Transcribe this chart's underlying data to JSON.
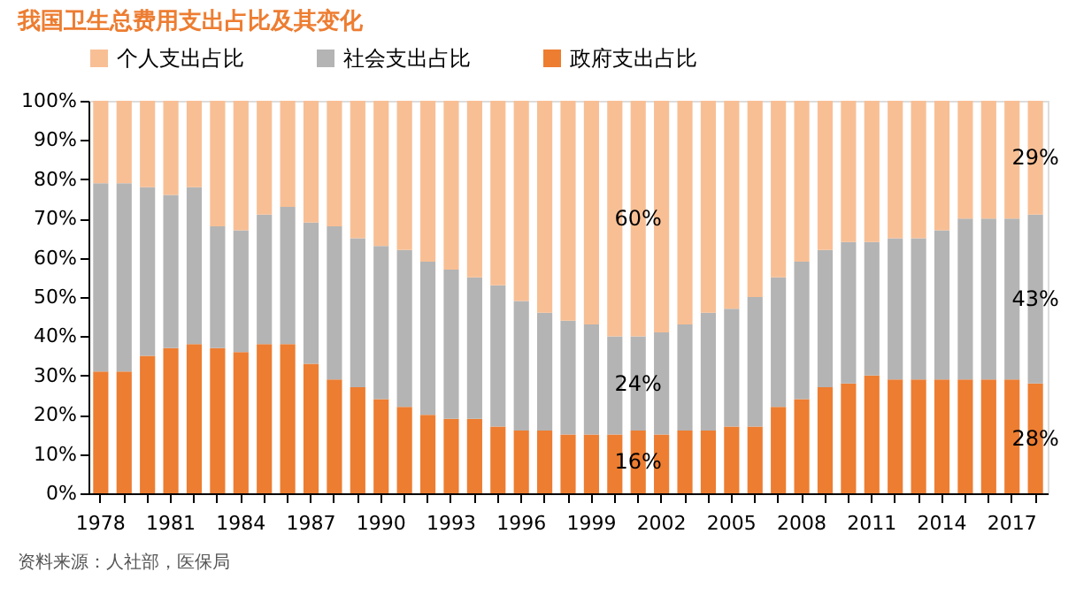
{
  "chart_data": {
    "type": "bar",
    "stacked": true,
    "title": "我国卫生总费用支出占比及其变化",
    "categories": [
      "1978",
      null,
      null,
      "1981",
      null,
      null,
      "1984",
      null,
      null,
      "1987",
      null,
      null,
      "1990",
      null,
      null,
      "1993",
      null,
      null,
      "1996",
      null,
      null,
      "1999",
      null,
      null,
      "2002",
      null,
      null,
      "2005",
      null,
      null,
      "2008",
      null,
      null,
      "2011",
      null,
      null,
      "2014",
      null,
      null,
      "2017",
      null
    ],
    "series": [
      {
        "name": "政府支出占比",
        "color": "#ed7d31",
        "values": [
          31,
          31,
          35,
          37,
          38,
          37,
          36,
          38,
          38,
          33,
          29,
          27,
          24,
          22,
          20,
          19,
          19,
          17,
          16,
          16,
          15,
          15,
          15,
          16,
          15,
          16,
          16,
          17,
          17,
          22,
          24,
          27,
          28,
          30,
          29,
          29,
          29,
          29,
          29,
          29,
          28
        ],
        "value_labels": [
          null,
          null,
          null,
          null,
          null,
          null,
          null,
          null,
          null,
          null,
          null,
          null,
          null,
          null,
          null,
          null,
          null,
          null,
          null,
          null,
          null,
          null,
          null,
          "16%",
          null,
          null,
          null,
          null,
          null,
          null,
          null,
          null,
          null,
          null,
          null,
          null,
          null,
          null,
          null,
          null,
          "28%"
        ]
      },
      {
        "name": "社会支出占比",
        "color": "#b4b4b4",
        "values": [
          48,
          48,
          43,
          39,
          40,
          31,
          31,
          33,
          35,
          36,
          39,
          38,
          39,
          40,
          39,
          38,
          36,
          36,
          33,
          30,
          29,
          28,
          25,
          24,
          26,
          27,
          30,
          30,
          33,
          33,
          35,
          35,
          36,
          34,
          36,
          36,
          38,
          41,
          41,
          41,
          43
        ],
        "value_labels": [
          null,
          null,
          null,
          null,
          null,
          null,
          null,
          null,
          null,
          null,
          null,
          null,
          null,
          null,
          null,
          null,
          null,
          null,
          null,
          null,
          null,
          null,
          null,
          "24%",
          null,
          null,
          null,
          null,
          null,
          null,
          null,
          null,
          null,
          null,
          null,
          null,
          null,
          null,
          null,
          null,
          "43%"
        ]
      },
      {
        "name": "个人支出占比",
        "color": "#f8bf95",
        "values": [
          21,
          21,
          22,
          24,
          22,
          32,
          33,
          29,
          27,
          31,
          32,
          35,
          37,
          38,
          41,
          43,
          45,
          47,
          51,
          54,
          56,
          57,
          60,
          60,
          59,
          57,
          54,
          53,
          50,
          45,
          41,
          38,
          36,
          36,
          35,
          35,
          33,
          30,
          30,
          30,
          29
        ],
        "value_labels": [
          null,
          null,
          null,
          null,
          null,
          null,
          null,
          null,
          null,
          null,
          null,
          null,
          null,
          null,
          null,
          null,
          null,
          null,
          null,
          null,
          null,
          null,
          null,
          "60%",
          null,
          null,
          null,
          null,
          null,
          null,
          null,
          null,
          null,
          null,
          null,
          null,
          null,
          null,
          null,
          null,
          "29%"
        ]
      }
    ],
    "ylim": [
      0,
      100
    ],
    "yticks": [
      {
        "value": 0,
        "label": "0%"
      },
      {
        "value": 10,
        "label": "10%"
      },
      {
        "value": 20,
        "label": "20%"
      },
      {
        "value": 30,
        "label": "30%"
      },
      {
        "value": 40,
        "label": "40%"
      },
      {
        "value": 50,
        "label": "50%"
      },
      {
        "value": 60,
        "label": "60%"
      },
      {
        "value": 70,
        "label": "70%"
      },
      {
        "value": 80,
        "label": "80%"
      },
      {
        "value": 90,
        "label": "90%"
      },
      {
        "value": 100,
        "label": "100%"
      }
    ],
    "grid": false,
    "legend": "top",
    "annotations": [
      "资料来源：人社部，医保局"
    ]
  }
}
